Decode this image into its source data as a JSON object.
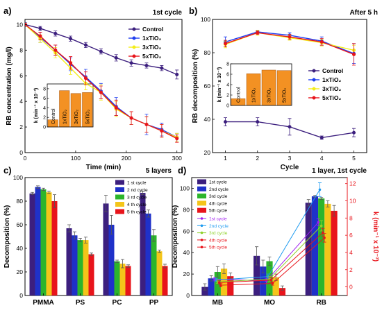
{
  "chart_data": [
    {
      "type": "line",
      "panel_label": "a)",
      "title": "1st cycle",
      "xlabel": "Time (min)",
      "ylabel": "RB concentration (mg/l)",
      "xlim": [
        0,
        310
      ],
      "ylim": [
        0,
        10.4
      ],
      "x_ticks": [
        0,
        100,
        200,
        300
      ],
      "y_ticks": [
        0,
        2,
        4,
        6,
        8,
        10
      ],
      "legend_position": "top-right",
      "x": [
        0,
        30,
        60,
        90,
        120,
        150,
        180,
        210,
        240,
        270,
        300
      ],
      "series": [
        {
          "name": "Control",
          "color": "#3c1f7e",
          "values": [
            10.0,
            9.7,
            9.3,
            8.9,
            8.4,
            7.9,
            7.4,
            7.0,
            6.8,
            6.6,
            6.1
          ],
          "errors": [
            0.15,
            0.15,
            0.2,
            0.2,
            0.2,
            0.2,
            0.25,
            0.25,
            0.2,
            0.2,
            0.35
          ]
        },
        {
          "name": "1xTiO₂",
          "color": "#1f3ff0",
          "values": [
            10.0,
            9.0,
            8.0,
            6.9,
            5.9,
            4.8,
            3.6,
            2.7,
            2.2,
            1.8,
            1.2
          ],
          "errors": [
            0.1,
            0.4,
            0.4,
            0.5,
            0.6,
            0.6,
            0.7,
            0.5,
            0.8,
            0.5,
            0.3
          ]
        },
        {
          "name": "3xTiO₂",
          "color": "#f4ee1a",
          "values": [
            10.0,
            8.9,
            7.8,
            6.6,
            5.4,
            4.7,
            3.4,
            2.7,
            2.2,
            1.7,
            1.2
          ],
          "errors": [
            0.1,
            0.3,
            0.4,
            0.5,
            0.5,
            0.6,
            0.6,
            0.5,
            0.6,
            0.5,
            0.3
          ]
        },
        {
          "name": "5xTiO₂",
          "color": "#e8141b",
          "values": [
            10.0,
            9.1,
            8.0,
            7.0,
            5.8,
            4.7,
            3.5,
            2.7,
            2.2,
            1.7,
            1.1
          ],
          "errors": [
            0.1,
            0.3,
            0.4,
            0.5,
            0.5,
            0.5,
            0.6,
            0.5,
            0.6,
            0.5,
            0.3
          ]
        }
      ],
      "inset": {
        "type": "bar",
        "ylabel": "k (min⁻¹ x 10⁻³)",
        "ylim": [
          0,
          9
        ],
        "y_ticks": [
          0,
          2,
          4,
          6,
          8
        ],
        "categories": [
          "Control",
          "1xTiO₂",
          "3xTiO₂",
          "5xTiO₂"
        ],
        "values": [
          1.5,
          7.6,
          7.0,
          7.2
        ],
        "color": "#f39123"
      }
    },
    {
      "type": "line",
      "panel_label": "b)",
      "title": "After 5 h",
      "xlabel": "Cycle",
      "ylabel": "RB decomposition (%)",
      "xlim": [
        0.6,
        5.4
      ],
      "ylim": [
        20,
        100
      ],
      "x_ticks": [
        1,
        2,
        3,
        4,
        5
      ],
      "y_ticks": [
        20,
        40,
        60,
        80,
        100
      ],
      "legend_position": "center-right",
      "x": [
        1,
        2,
        3,
        4,
        5
      ],
      "series": [
        {
          "name": "Control",
          "color": "#3c1f7e",
          "values": [
            38.5,
            38.5,
            35.5,
            29.0,
            32.0
          ],
          "errors": [
            2.5,
            2.5,
            5.0,
            1.0,
            2.5
          ]
        },
        {
          "name": "1xTiO₂",
          "color": "#1f3ff0",
          "values": [
            86.5,
            92.5,
            90.5,
            87.0,
            79.5
          ],
          "errors": [
            3.0,
            1.0,
            1.5,
            2.5,
            6.0
          ]
        },
        {
          "name": "3xTiO₂",
          "color": "#f4ee1a",
          "values": [
            85.0,
            92.0,
            89.0,
            86.0,
            81.5
          ],
          "errors": [
            2.0,
            1.5,
            1.5,
            2.0,
            3.0
          ]
        },
        {
          "name": "5xTiO₂",
          "color": "#e8141b",
          "values": [
            85.5,
            92.0,
            89.5,
            86.5,
            79.0
          ],
          "errors": [
            2.0,
            1.0,
            1.5,
            2.0,
            6.5
          ]
        }
      ],
      "inset": {
        "type": "bar",
        "ylabel": "k (min⁻¹ x 10⁻³)",
        "ylim": [
          0,
          8
        ],
        "y_ticks": [
          0,
          2,
          4,
          6,
          8
        ],
        "categories": [
          "Control",
          "1xTiO₂",
          "3xTiO₂",
          "5xTiO₂"
        ],
        "values": [
          1.3,
          6.1,
          6.8,
          6.7
        ],
        "color": "#f39123"
      }
    },
    {
      "type": "bar",
      "panel_label": "c)",
      "title": "5 layers",
      "xlabel": "",
      "ylabel": "Decomposition (%)",
      "ylim": [
        0,
        100
      ],
      "y_ticks": [
        0,
        20,
        40,
        60,
        80,
        100
      ],
      "legend_position": "top-right",
      "categories": [
        "PMMA",
        "PS",
        "PC",
        "PP"
      ],
      "series": [
        {
          "name": "1 st cycle",
          "color": "#3c1f7e",
          "values": [
            86.5,
            57.0,
            78.0,
            87.0
          ],
          "errors": [
            1.0,
            3.0,
            7.0,
            1.5
          ]
        },
        {
          "name": "2 nd cycle",
          "color": "#1f31c9",
          "values": [
            92.0,
            51.0,
            60.0,
            69.5
          ],
          "errors": [
            1.0,
            3.0,
            8.0,
            3.0
          ]
        },
        {
          "name": "3 rd cycle",
          "color": "#2cb52c",
          "values": [
            90.0,
            47.0,
            29.0,
            51.0
          ],
          "errors": [
            1.0,
            1.5,
            1.0,
            5.0
          ]
        },
        {
          "name": "4 th cycle",
          "color": "#f4c51a",
          "values": [
            87.5,
            47.0,
            27.0,
            37.5
          ],
          "errors": [
            1.0,
            2.5,
            3.5,
            1.0
          ]
        },
        {
          "name": "5 th cycle",
          "color": "#e8141b",
          "values": [
            80.0,
            35.0,
            25.0,
            25.0
          ],
          "errors": [
            5.5,
            1.0,
            1.0,
            1.5
          ]
        }
      ]
    },
    {
      "type": "bar",
      "panel_label": "d)",
      "title": "1 layer, 1st cycle",
      "xlabel": "",
      "ylabel": "Decomposition (%)",
      "ylabel_right": "k (min⁻¹ x 10⁻³)",
      "ylim": [
        0,
        110
      ],
      "y_ticks": [
        0,
        20,
        40,
        60,
        80,
        100
      ],
      "ylim_right": [
        -1,
        12.7
      ],
      "y_ticks_right": [
        0,
        2,
        4,
        6,
        8,
        10,
        12
      ],
      "legend_position": "top-left",
      "categories": [
        "MB",
        "MO",
        "RB"
      ],
      "series": [
        {
          "name": "1st cycle",
          "color": "#3c1f7e",
          "values": [
            8.0,
            37.0,
            86.5
          ],
          "errors": [
            3.0,
            8.5,
            3.0
          ]
        },
        {
          "name": "2nd cycle",
          "color": "#1f31c9",
          "values": [
            16.0,
            27.0,
            92.5
          ],
          "errors": [
            2.5,
            6.0,
            1.0
          ]
        },
        {
          "name": "3rd cycle",
          "color": "#2cb52c",
          "values": [
            22.0,
            32.0,
            90.5
          ],
          "errors": [
            5.0,
            4.0,
            1.0
          ]
        },
        {
          "name": "4th cycle",
          "color": "#f4c51a",
          "values": [
            25.0,
            17.0,
            85.5
          ],
          "errors": [
            4.5,
            3.0,
            3.0
          ]
        },
        {
          "name": "5th cycle",
          "color": "#e8141b",
          "values": [
            18.0,
            7.0,
            79.0
          ],
          "errors": [
            3.0,
            2.0,
            5.0
          ]
        }
      ],
      "k_series": [
        {
          "name": "1st cycle",
          "color": "#a020f0",
          "values": [
            0.9,
            0.7,
            7.5
          ],
          "errors": [
            0.2,
            0.3,
            0.4
          ]
        },
        {
          "name": "2nd cycle",
          "color": "#1e9bf0",
          "values": [
            0.8,
            1.2,
            11.3
          ],
          "errors": [
            0.2,
            0.3,
            0.8
          ]
        },
        {
          "name": "3rd cycle",
          "color": "#8fd12a",
          "values": [
            0.6,
            0.9,
            7.1
          ],
          "errors": [
            0.2,
            0.3,
            0.6
          ]
        },
        {
          "name": "4th cycle",
          "color": "#e8141b",
          "values": [
            0.5,
            0.8,
            6.3
          ],
          "errors": [
            0.2,
            0.3,
            0.5
          ]
        },
        {
          "name": "5th cycle",
          "color": "#e8141b",
          "values": [
            0.2,
            0.4,
            5.7
          ],
          "errors": [
            0.2,
            0.2,
            0.5
          ]
        }
      ]
    }
  ]
}
